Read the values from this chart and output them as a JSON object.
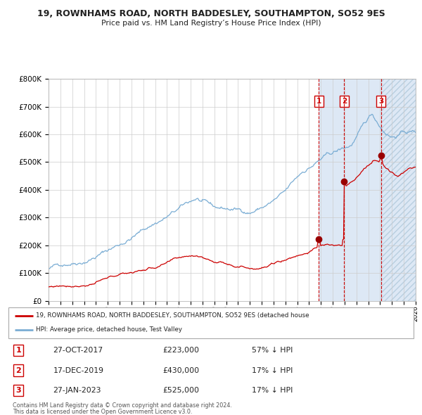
{
  "title1": "19, ROWNHAMS ROAD, NORTH BADDESLEY, SOUTHAMPTON, SO52 9ES",
  "title2": "Price paid vs. HM Land Registry’s House Price Index (HPI)",
  "legend_red": "19, ROWNHAMS ROAD, NORTH BADDESLEY, SOUTHAMPTON, SO52 9ES (detached house",
  "legend_blue": "HPI: Average price, detached house, Test Valley",
  "sales": [
    {
      "num": 1,
      "date": "27-OCT-2017",
      "price": 223000,
      "pct": "57%",
      "dir": "↓"
    },
    {
      "num": 2,
      "date": "17-DEC-2019",
      "price": 430000,
      "pct": "17%",
      "dir": "↓"
    },
    {
      "num": 3,
      "date": "27-JAN-2023",
      "price": 525000,
      "pct": "17%",
      "dir": "↓"
    }
  ],
  "sale_dates_decimal": [
    2017.82,
    2019.96,
    2023.07
  ],
  "sale_prices": [
    223000,
    430000,
    525000
  ],
  "footer1": "Contains HM Land Registry data © Crown copyright and database right 2024.",
  "footer2": "This data is licensed under the Open Government Licence v3.0.",
  "ylim": [
    0,
    800000
  ],
  "xlim_start": 1995.0,
  "xlim_end": 2026.0,
  "red_color": "#cc0000",
  "blue_color": "#7aadd4",
  "blue_shade_color": "#dde8f5",
  "grid_color": "#cccccc",
  "bg_color": "#ffffff",
  "hatch_color": "#b8cfe0"
}
